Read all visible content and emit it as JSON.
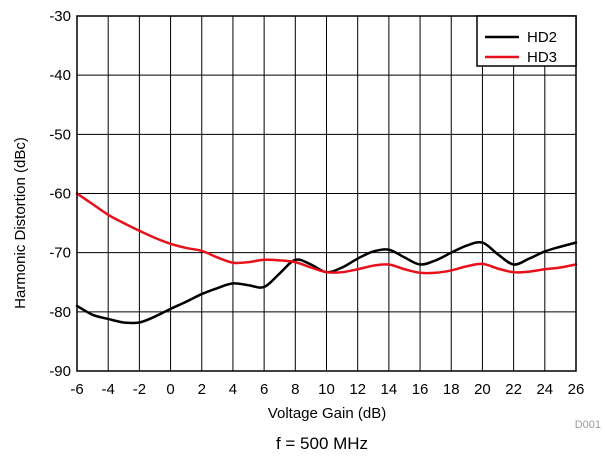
{
  "chart_data": {
    "type": "line",
    "title": "",
    "caption": "f = 500 MHz",
    "figure_id": "D001",
    "xlabel": "Voltage Gain (dB)",
    "ylabel": "Harmonic Distortion (dBc)",
    "xlim": [
      -6,
      26
    ],
    "ylim": [
      -90,
      -30
    ],
    "x_ticks": [
      -6,
      -4,
      -2,
      0,
      2,
      4,
      6,
      8,
      10,
      12,
      14,
      16,
      18,
      20,
      22,
      24,
      26
    ],
    "y_ticks": [
      -30,
      -40,
      -50,
      -60,
      -70,
      -80,
      -90
    ],
    "x_tick_labels": [
      "-6",
      "-4",
      "-2",
      "0",
      "2",
      "4",
      "6",
      "8",
      "10",
      "12",
      "14",
      "16",
      "18",
      "20",
      "22",
      "24",
      "26"
    ],
    "y_tick_labels": [
      "-30",
      "-40",
      "-50",
      "-60",
      "-70",
      "-80",
      "-90"
    ],
    "grid": true,
    "legend_position": "top-right",
    "series": [
      {
        "name": "HD2",
        "color": "#000000",
        "points": [
          [
            -6,
            -79
          ],
          [
            -5,
            -80.5
          ],
          [
            -4,
            -81.2
          ],
          [
            -3,
            -81.8
          ],
          [
            -2,
            -81.8
          ],
          [
            -1,
            -80.8
          ],
          [
            0,
            -79.5
          ],
          [
            1,
            -78.3
          ],
          [
            2,
            -77.0
          ],
          [
            3,
            -76.0
          ],
          [
            4,
            -75.2
          ],
          [
            5,
            -75.5
          ],
          [
            6,
            -75.8
          ],
          [
            7,
            -73.5
          ],
          [
            8,
            -71.2
          ],
          [
            9,
            -72.0
          ],
          [
            10,
            -73.3
          ],
          [
            11,
            -72.5
          ],
          [
            12,
            -71.0
          ],
          [
            13,
            -69.8
          ],
          [
            14,
            -69.5
          ],
          [
            15,
            -70.8
          ],
          [
            16,
            -72.0
          ],
          [
            17,
            -71.3
          ],
          [
            18,
            -70.0
          ],
          [
            19,
            -68.8
          ],
          [
            20,
            -68.3
          ],
          [
            21,
            -70.3
          ],
          [
            22,
            -72.0
          ],
          [
            23,
            -71.0
          ],
          [
            24,
            -69.8
          ],
          [
            25,
            -69.0
          ],
          [
            26,
            -68.3
          ]
        ]
      },
      {
        "name": "HD3",
        "color": "#e8101b",
        "points": [
          [
            -6,
            -60.0
          ],
          [
            -5,
            -61.8
          ],
          [
            -4,
            -63.6
          ],
          [
            -3,
            -65.0
          ],
          [
            -2,
            -66.3
          ],
          [
            -1,
            -67.5
          ],
          [
            0,
            -68.5
          ],
          [
            1,
            -69.2
          ],
          [
            2,
            -69.7
          ],
          [
            3,
            -70.8
          ],
          [
            4,
            -71.7
          ],
          [
            5,
            -71.6
          ],
          [
            6,
            -71.2
          ],
          [
            7,
            -71.3
          ],
          [
            8,
            -71.6
          ],
          [
            9,
            -72.5
          ],
          [
            10,
            -73.3
          ],
          [
            11,
            -73.3
          ],
          [
            12,
            -72.8
          ],
          [
            13,
            -72.2
          ],
          [
            14,
            -72.0
          ],
          [
            15,
            -72.8
          ],
          [
            16,
            -73.4
          ],
          [
            17,
            -73.4
          ],
          [
            18,
            -73.0
          ],
          [
            19,
            -72.3
          ],
          [
            20,
            -71.9
          ],
          [
            21,
            -72.7
          ],
          [
            22,
            -73.3
          ],
          [
            23,
            -73.2
          ],
          [
            24,
            -72.8
          ],
          [
            25,
            -72.5
          ],
          [
            26,
            -72.0
          ]
        ]
      }
    ]
  }
}
